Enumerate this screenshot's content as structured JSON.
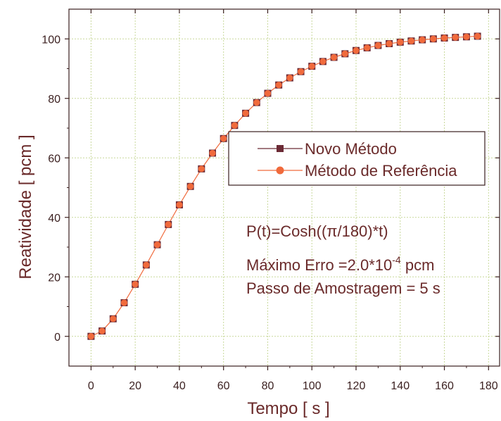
{
  "chart_data": {
    "type": "line",
    "xlabel": "Tempo [ s ]",
    "ylabel": "Reatividade [ pcm ]",
    "xlim": [
      -10,
      185
    ],
    "ylim": [
      -10,
      110
    ],
    "xticks": [
      0,
      20,
      40,
      60,
      80,
      100,
      120,
      140,
      160,
      180
    ],
    "yticks": [
      0,
      20,
      40,
      60,
      80,
      100
    ],
    "grid": true,
    "legend_position": "center-right",
    "x": [
      0,
      5,
      10,
      15,
      20,
      25,
      30,
      35,
      40,
      45,
      50,
      55,
      60,
      65,
      70,
      75,
      80,
      85,
      90,
      95,
      100,
      105,
      110,
      115,
      120,
      125,
      130,
      135,
      140,
      145,
      150,
      155,
      160,
      165,
      170,
      175
    ],
    "series": [
      {
        "name": "Novo Método",
        "marker": "square",
        "color": "#6b2a35",
        "values": [
          0,
          1.8,
          5.9,
          11.3,
          17.5,
          24.0,
          30.8,
          37.6,
          44.2,
          50.4,
          56.3,
          61.6,
          66.5,
          70.9,
          75.0,
          78.6,
          81.7,
          84.5,
          86.9,
          89.0,
          90.8,
          92.4,
          93.8,
          95.0,
          96.1,
          97.0,
          97.8,
          98.4,
          98.9,
          99.3,
          99.7,
          100.0,
          100.3,
          100.5,
          100.7,
          100.9
        ]
      },
      {
        "name": "Método de Referência",
        "marker": "circle",
        "color": "#f06a3c",
        "values": [
          0,
          1.8,
          5.9,
          11.3,
          17.5,
          24.0,
          30.8,
          37.6,
          44.2,
          50.4,
          56.3,
          61.6,
          66.5,
          70.9,
          75.0,
          78.6,
          81.7,
          84.5,
          86.9,
          89.0,
          90.8,
          92.4,
          93.8,
          95.0,
          96.1,
          97.0,
          97.8,
          98.4,
          98.9,
          99.3,
          99.7,
          100.0,
          100.3,
          100.5,
          100.7,
          100.9
        ]
      }
    ],
    "annotations": {
      "formula": "P(t)=Cosh((π/180)*t)",
      "error_prefix": "Máximo Erro =2.0*10",
      "error_exponent": "-4",
      "error_suffix": " pcm",
      "step": "Passo de Amostragem = 5 s"
    },
    "colors": {
      "axis": "#3a1f1f",
      "grid": "#c8d89a",
      "text": "#6a2a2a",
      "line": "#f06a3c"
    }
  }
}
